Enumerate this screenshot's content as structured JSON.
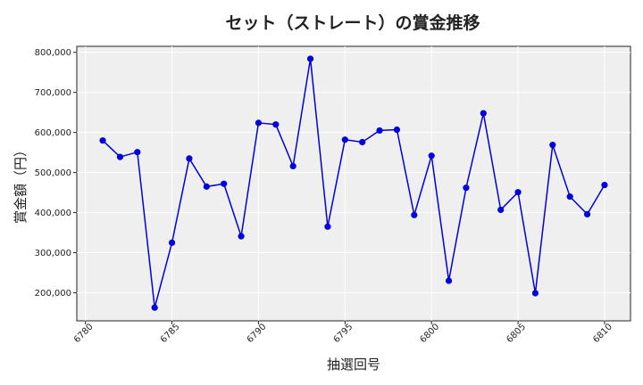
{
  "chart_data": {
    "type": "line",
    "title": "セット（ストレート）の賞金推移",
    "xlabel": "抽選回号",
    "ylabel": "賞金額（円）",
    "xlim": [
      6779.5,
      6811.5
    ],
    "ylim": [
      130000,
      815000
    ],
    "x_ticks": [
      6780,
      6785,
      6790,
      6795,
      6800,
      6805,
      6810
    ],
    "y_ticks": [
      200000,
      300000,
      400000,
      500000,
      600000,
      700000,
      800000
    ],
    "y_tick_labels": [
      "200,000",
      "300,000",
      "400,000",
      "500,000",
      "600,000",
      "700,000",
      "800,000"
    ],
    "grid": true,
    "series": [
      {
        "color": "#0000dd",
        "x": [
          6781,
          6782,
          6783,
          6784,
          6785,
          6786,
          6787,
          6788,
          6789,
          6790,
          6791,
          6792,
          6793,
          6794,
          6795,
          6796,
          6797,
          6798,
          6799,
          6800,
          6801,
          6802,
          6803,
          6804,
          6805,
          6806,
          6807,
          6808,
          6809,
          6810
        ],
        "values": [
          580000,
          539000,
          551000,
          163000,
          325000,
          535000,
          465000,
          472000,
          341000,
          624000,
          620000,
          516000,
          784000,
          365000,
          582000,
          576000,
          605000,
          607000,
          394000,
          542000,
          230000,
          462000,
          648000,
          407000,
          451000,
          199000,
          569000,
          440000,
          396000,
          469000
        ]
      }
    ]
  }
}
